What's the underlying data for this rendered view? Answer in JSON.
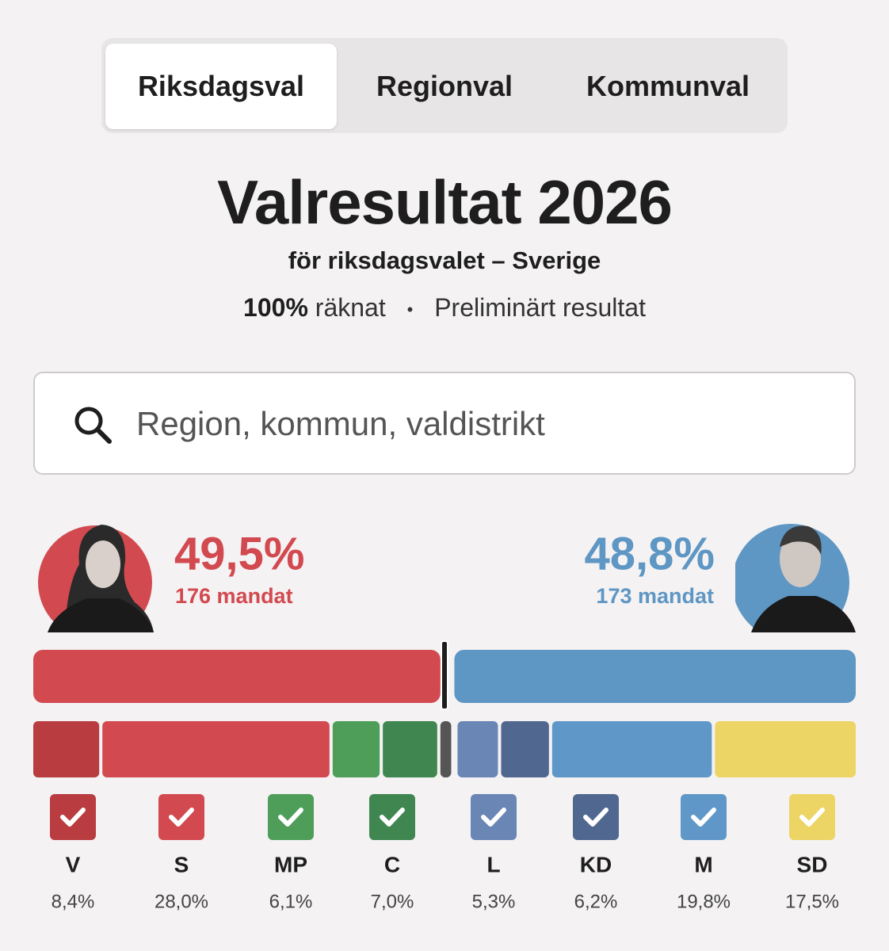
{
  "tabs": [
    "Riksdagsval",
    "Regionval",
    "Kommunval"
  ],
  "header": {
    "title": "Valresultat 2026",
    "subtitle": "för riksdagsvalet – Sverige",
    "counted": "100%",
    "counted_suffix": "räknat",
    "status": "Preliminärt resultat"
  },
  "search": {
    "placeholder": "Region, kommun, valdistrikt"
  },
  "blocs": {
    "left": {
      "value": 49.5,
      "label": "49,5%",
      "seats": "176 mandat",
      "color": "#d24a50",
      "parties": [
        {
          "name": "V",
          "value": 8.4,
          "label": "8,4%",
          "color": "#b83c40"
        },
        {
          "name": "S",
          "value": 28.0,
          "label": "28,0%",
          "color": "#d24a50"
        },
        {
          "name": "MP",
          "value": 6.1,
          "label": "6,1%",
          "color": "#4e9e5a"
        },
        {
          "name": "C",
          "value": 7.0,
          "label": "7,0%",
          "color": "#3f8650"
        }
      ]
    },
    "right": {
      "value": 48.8,
      "label": "48,8%",
      "seats": "173 mandat",
      "color": "#5e96c4",
      "parties": [
        {
          "name": "L",
          "value": 5.3,
          "label": "5,3%",
          "color": "#6a86b5"
        },
        {
          "name": "KD",
          "value": 6.2,
          "label": "6,2%",
          "color": "#506890"
        },
        {
          "name": "M",
          "value": 19.8,
          "label": "19,8%",
          "color": "#5f98c8"
        },
        {
          "name": "SD",
          "value": 17.5,
          "label": "17,5%",
          "color": "#ecd565"
        }
      ]
    }
  }
}
